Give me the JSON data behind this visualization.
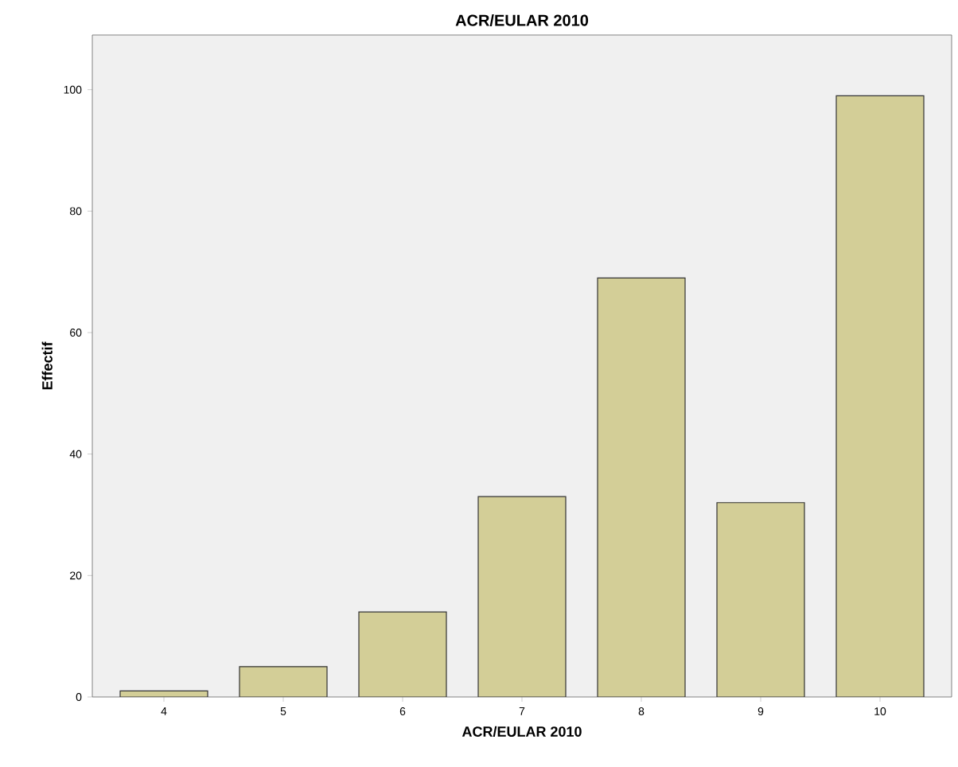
{
  "chart_data": {
    "type": "bar",
    "title": "ACR/EULAR 2010",
    "xlabel": "ACR/EULAR 2010",
    "ylabel": "Effectif",
    "categories": [
      "4",
      "5",
      "6",
      "7",
      "8",
      "9",
      "10"
    ],
    "values": [
      1,
      5,
      14,
      33,
      69,
      32,
      99
    ],
    "color": "#d3ce97",
    "ylim": [
      0,
      109
    ],
    "yticks": [
      0,
      20,
      40,
      60,
      80,
      100
    ],
    "grid": false
  }
}
